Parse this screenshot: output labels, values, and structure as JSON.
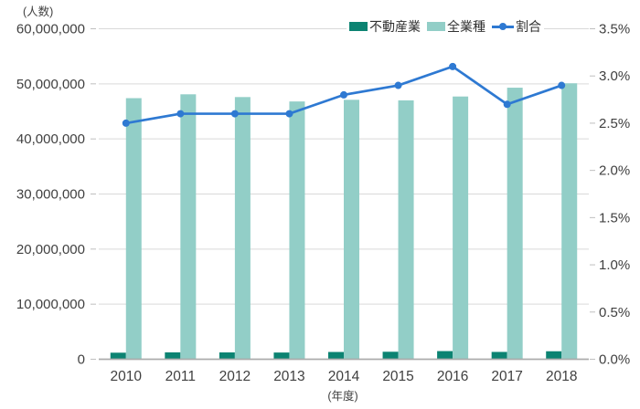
{
  "axes": {
    "left_unit_label": "(人数)",
    "x_unit_label": "(年度)"
  },
  "legend": {
    "items": [
      {
        "label": "不動産業",
        "swatch": "rect",
        "color": "#0c8372"
      },
      {
        "label": "全業種",
        "swatch": "rect",
        "color": "#92cec7"
      },
      {
        "label": "割合",
        "swatch": "line-marker",
        "color": "#2e79d2"
      }
    ]
  },
  "chart_data": {
    "type": "bar",
    "subtype": "grouped-bars-with-line-combo",
    "categories": [
      "2010",
      "2011",
      "2012",
      "2013",
      "2014",
      "2015",
      "2016",
      "2017",
      "2018"
    ],
    "series": [
      {
        "name": "不動産業",
        "key": "real-estate",
        "kind": "bar",
        "axis": "left",
        "color": "#0c8372",
        "values": [
          1190000,
          1250000,
          1240000,
          1220000,
          1320000,
          1360000,
          1480000,
          1330000,
          1450000
        ]
      },
      {
        "name": "全業種",
        "key": "all-industries",
        "kind": "bar",
        "axis": "left",
        "color": "#92cec7",
        "values": [
          47400000,
          48100000,
          47600000,
          46800000,
          47100000,
          47000000,
          47700000,
          49300000,
          50100000
        ]
      },
      {
        "name": "割合",
        "key": "ratio",
        "kind": "line",
        "axis": "right",
        "color": "#2e79d2",
        "values": [
          2.5,
          2.6,
          2.6,
          2.6,
          2.8,
          2.9,
          3.1,
          2.7,
          2.9
        ]
      }
    ],
    "left_axis": {
      "title": "(人数)",
      "min": 0,
      "max": 60000000,
      "tick_step": 10000000,
      "tick_labels": [
        "0",
        "10,000,000",
        "20,000,000",
        "30,000,000",
        "40,000,000",
        "50,000,000",
        "60,000,000"
      ]
    },
    "right_axis": {
      "min": 0,
      "max": 3.5,
      "tick_step": 0.5,
      "tick_labels": [
        "0.0%",
        "0.5%",
        "1.0%",
        "1.5%",
        "2.0%",
        "2.5%",
        "3.0%",
        "3.5%"
      ]
    },
    "x_axis": {
      "title": "(年度)"
    },
    "grid": true,
    "legend_position": "top-right",
    "colors": {
      "gridline": "#d9d9d9",
      "baseline": "#ababab",
      "tick": "#bfbfbf",
      "label_text": "#404040"
    }
  }
}
